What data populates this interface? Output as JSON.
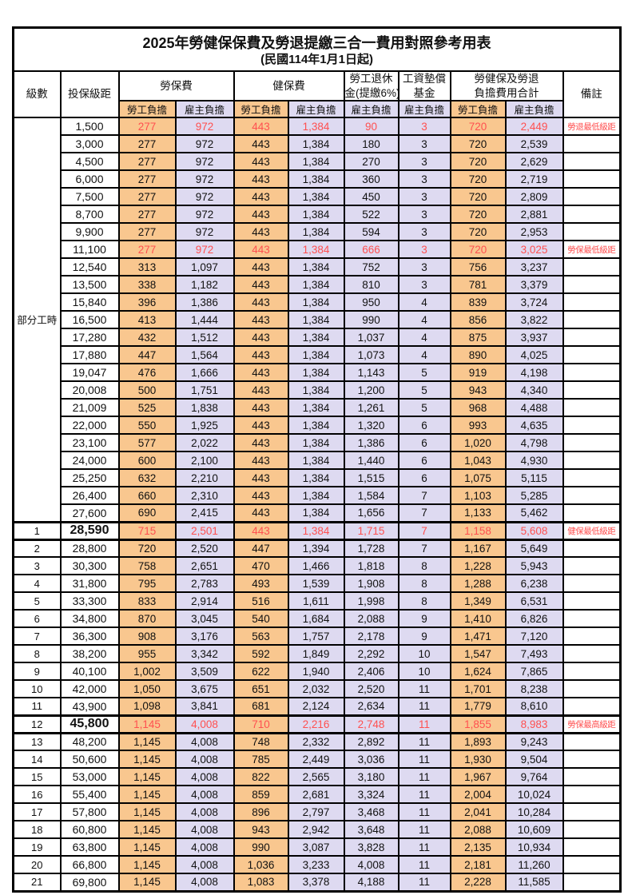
{
  "title": "2025年勞健保保費及勞退提繳三合一費用對照參考用表",
  "subtitle": "(民國114年1月1日起)",
  "colors": {
    "employee_column_bg": "#F9C78F",
    "employer_column_bg": "#DEDAF1",
    "highlight_text": "#FF5050",
    "border": "#000000",
    "background": "#FFFFFF"
  },
  "header": {
    "level": "級數",
    "bracket": "投保級距",
    "labor_insurance": "勞保費",
    "health_insurance": "健保費",
    "pension_line1": "勞工退休",
    "pension_line2": "金(提繳6%)",
    "wage_fund_line1": "工資墊償",
    "wage_fund_line2": "基金",
    "total_line1": "勞健保及勞退",
    "total_line2": "負擔費用合計",
    "remark": "備註",
    "employee": "勞工負擔",
    "employer": "雇主負擔"
  },
  "part_time_label": "部分工時",
  "rows": [
    {
      "level": "",
      "bracket": "1,500",
      "values": [
        "277",
        "972",
        "443",
        "1,384",
        "90",
        "3",
        "720",
        "2,449"
      ],
      "remark": "勞退最低級距",
      "highlight": true,
      "emphasis": false
    },
    {
      "level": "",
      "bracket": "3,000",
      "values": [
        "277",
        "972",
        "443",
        "1,384",
        "180",
        "3",
        "720",
        "2,539"
      ],
      "remark": "",
      "highlight": false,
      "emphasis": false
    },
    {
      "level": "",
      "bracket": "4,500",
      "values": [
        "277",
        "972",
        "443",
        "1,384",
        "270",
        "3",
        "720",
        "2,629"
      ],
      "remark": "",
      "highlight": false,
      "emphasis": false
    },
    {
      "level": "",
      "bracket": "6,000",
      "values": [
        "277",
        "972",
        "443",
        "1,384",
        "360",
        "3",
        "720",
        "2,719"
      ],
      "remark": "",
      "highlight": false,
      "emphasis": false
    },
    {
      "level": "",
      "bracket": "7,500",
      "values": [
        "277",
        "972",
        "443",
        "1,384",
        "450",
        "3",
        "720",
        "2,809"
      ],
      "remark": "",
      "highlight": false,
      "emphasis": false
    },
    {
      "level": "",
      "bracket": "8,700",
      "values": [
        "277",
        "972",
        "443",
        "1,384",
        "522",
        "3",
        "720",
        "2,881"
      ],
      "remark": "",
      "highlight": false,
      "emphasis": false
    },
    {
      "level": "",
      "bracket": "9,900",
      "values": [
        "277",
        "972",
        "443",
        "1,384",
        "594",
        "3",
        "720",
        "2,953"
      ],
      "remark": "",
      "highlight": false,
      "emphasis": false
    },
    {
      "level": "",
      "bracket": "11,100",
      "values": [
        "277",
        "972",
        "443",
        "1,384",
        "666",
        "3",
        "720",
        "3,025"
      ],
      "remark": "勞保最低級距",
      "highlight": true,
      "emphasis": false
    },
    {
      "level": "",
      "bracket": "12,540",
      "values": [
        "313",
        "1,097",
        "443",
        "1,384",
        "752",
        "3",
        "756",
        "3,237"
      ],
      "remark": "",
      "highlight": false,
      "emphasis": false
    },
    {
      "level": "",
      "bracket": "13,500",
      "values": [
        "338",
        "1,182",
        "443",
        "1,384",
        "810",
        "3",
        "781",
        "3,379"
      ],
      "remark": "",
      "highlight": false,
      "emphasis": false
    },
    {
      "level": "",
      "bracket": "15,840",
      "values": [
        "396",
        "1,386",
        "443",
        "1,384",
        "950",
        "4",
        "839",
        "3,724"
      ],
      "remark": "",
      "highlight": false,
      "emphasis": false
    },
    {
      "level": "",
      "bracket": "16,500",
      "values": [
        "413",
        "1,444",
        "443",
        "1,384",
        "990",
        "4",
        "856",
        "3,822"
      ],
      "remark": "",
      "highlight": false,
      "emphasis": false
    },
    {
      "level": "",
      "bracket": "17,280",
      "values": [
        "432",
        "1,512",
        "443",
        "1,384",
        "1,037",
        "4",
        "875",
        "3,937"
      ],
      "remark": "",
      "highlight": false,
      "emphasis": false
    },
    {
      "level": "",
      "bracket": "17,880",
      "values": [
        "447",
        "1,564",
        "443",
        "1,384",
        "1,073",
        "4",
        "890",
        "4,025"
      ],
      "remark": "",
      "highlight": false,
      "emphasis": false
    },
    {
      "level": "",
      "bracket": "19,047",
      "values": [
        "476",
        "1,666",
        "443",
        "1,384",
        "1,143",
        "5",
        "919",
        "4,198"
      ],
      "remark": "",
      "highlight": false,
      "emphasis": false
    },
    {
      "level": "",
      "bracket": "20,008",
      "values": [
        "500",
        "1,751",
        "443",
        "1,384",
        "1,200",
        "5",
        "943",
        "4,340"
      ],
      "remark": "",
      "highlight": false,
      "emphasis": false
    },
    {
      "level": "",
      "bracket": "21,009",
      "values": [
        "525",
        "1,838",
        "443",
        "1,384",
        "1,261",
        "5",
        "968",
        "4,488"
      ],
      "remark": "",
      "highlight": false,
      "emphasis": false
    },
    {
      "level": "",
      "bracket": "22,000",
      "values": [
        "550",
        "1,925",
        "443",
        "1,384",
        "1,320",
        "6",
        "993",
        "4,635"
      ],
      "remark": "",
      "highlight": false,
      "emphasis": false
    },
    {
      "level": "",
      "bracket": "23,100",
      "values": [
        "577",
        "2,022",
        "443",
        "1,384",
        "1,386",
        "6",
        "1,020",
        "4,798"
      ],
      "remark": "",
      "highlight": false,
      "emphasis": false
    },
    {
      "level": "",
      "bracket": "24,000",
      "values": [
        "600",
        "2,100",
        "443",
        "1,384",
        "1,440",
        "6",
        "1,043",
        "4,930"
      ],
      "remark": "",
      "highlight": false,
      "emphasis": false
    },
    {
      "level": "",
      "bracket": "25,250",
      "values": [
        "632",
        "2,210",
        "443",
        "1,384",
        "1,515",
        "6",
        "1,075",
        "5,115"
      ],
      "remark": "",
      "highlight": false,
      "emphasis": false
    },
    {
      "level": "",
      "bracket": "26,400",
      "values": [
        "660",
        "2,310",
        "443",
        "1,384",
        "1,584",
        "7",
        "1,103",
        "5,285"
      ],
      "remark": "",
      "highlight": false,
      "emphasis": false
    },
    {
      "level": "",
      "bracket": "27,600",
      "values": [
        "690",
        "2,415",
        "443",
        "1,384",
        "1,656",
        "7",
        "1,133",
        "5,462"
      ],
      "remark": "",
      "highlight": false,
      "emphasis": false
    },
    {
      "level": "1",
      "bracket": "28,590",
      "values": [
        "715",
        "2,501",
        "443",
        "1,384",
        "1,715",
        "7",
        "1,158",
        "5,608"
      ],
      "remark": "健保最低級距",
      "highlight": true,
      "emphasis": true
    },
    {
      "level": "2",
      "bracket": "28,800",
      "values": [
        "720",
        "2,520",
        "447",
        "1,394",
        "1,728",
        "7",
        "1,167",
        "5,649"
      ],
      "remark": "",
      "highlight": false,
      "emphasis": false
    },
    {
      "level": "3",
      "bracket": "30,300",
      "values": [
        "758",
        "2,651",
        "470",
        "1,466",
        "1,818",
        "8",
        "1,228",
        "5,943"
      ],
      "remark": "",
      "highlight": false,
      "emphasis": false
    },
    {
      "level": "4",
      "bracket": "31,800",
      "values": [
        "795",
        "2,783",
        "493",
        "1,539",
        "1,908",
        "8",
        "1,288",
        "6,238"
      ],
      "remark": "",
      "highlight": false,
      "emphasis": false
    },
    {
      "level": "5",
      "bracket": "33,300",
      "values": [
        "833",
        "2,914",
        "516",
        "1,611",
        "1,998",
        "8",
        "1,349",
        "6,531"
      ],
      "remark": "",
      "highlight": false,
      "emphasis": false
    },
    {
      "level": "6",
      "bracket": "34,800",
      "values": [
        "870",
        "3,045",
        "540",
        "1,684",
        "2,088",
        "9",
        "1,410",
        "6,826"
      ],
      "remark": "",
      "highlight": false,
      "emphasis": false
    },
    {
      "level": "7",
      "bracket": "36,300",
      "values": [
        "908",
        "3,176",
        "563",
        "1,757",
        "2,178",
        "9",
        "1,471",
        "7,120"
      ],
      "remark": "",
      "highlight": false,
      "emphasis": false
    },
    {
      "level": "8",
      "bracket": "38,200",
      "values": [
        "955",
        "3,342",
        "592",
        "1,849",
        "2,292",
        "10",
        "1,547",
        "7,493"
      ],
      "remark": "",
      "highlight": false,
      "emphasis": false
    },
    {
      "level": "9",
      "bracket": "40,100",
      "values": [
        "1,002",
        "3,509",
        "622",
        "1,940",
        "2,406",
        "10",
        "1,624",
        "7,865"
      ],
      "remark": "",
      "highlight": false,
      "emphasis": false
    },
    {
      "level": "10",
      "bracket": "42,000",
      "values": [
        "1,050",
        "3,675",
        "651",
        "2,032",
        "2,520",
        "11",
        "1,701",
        "8,238"
      ],
      "remark": "",
      "highlight": false,
      "emphasis": false
    },
    {
      "level": "11",
      "bracket": "43,900",
      "values": [
        "1,098",
        "3,841",
        "681",
        "2,124",
        "2,634",
        "11",
        "1,779",
        "8,610"
      ],
      "remark": "",
      "highlight": false,
      "emphasis": false
    },
    {
      "level": "12",
      "bracket": "45,800",
      "values": [
        "1,145",
        "4,008",
        "710",
        "2,216",
        "2,748",
        "11",
        "1,855",
        "8,983"
      ],
      "remark": "勞保最高級距",
      "highlight": true,
      "emphasis": true
    },
    {
      "level": "13",
      "bracket": "48,200",
      "values": [
        "1,145",
        "4,008",
        "748",
        "2,332",
        "2,892",
        "11",
        "1,893",
        "9,243"
      ],
      "remark": "",
      "highlight": false,
      "emphasis": false
    },
    {
      "level": "14",
      "bracket": "50,600",
      "values": [
        "1,145",
        "4,008",
        "785",
        "2,449",
        "3,036",
        "11",
        "1,930",
        "9,504"
      ],
      "remark": "",
      "highlight": false,
      "emphasis": false
    },
    {
      "level": "15",
      "bracket": "53,000",
      "values": [
        "1,145",
        "4,008",
        "822",
        "2,565",
        "3,180",
        "11",
        "1,967",
        "9,764"
      ],
      "remark": "",
      "highlight": false,
      "emphasis": false
    },
    {
      "level": "16",
      "bracket": "55,400",
      "values": [
        "1,145",
        "4,008",
        "859",
        "2,681",
        "3,324",
        "11",
        "2,004",
        "10,024"
      ],
      "remark": "",
      "highlight": false,
      "emphasis": false
    },
    {
      "level": "17",
      "bracket": "57,800",
      "values": [
        "1,145",
        "4,008",
        "896",
        "2,797",
        "3,468",
        "11",
        "2,041",
        "10,284"
      ],
      "remark": "",
      "highlight": false,
      "emphasis": false
    },
    {
      "level": "18",
      "bracket": "60,800",
      "values": [
        "1,145",
        "4,008",
        "943",
        "2,942",
        "3,648",
        "11",
        "2,088",
        "10,609"
      ],
      "remark": "",
      "highlight": false,
      "emphasis": false
    },
    {
      "level": "19",
      "bracket": "63,800",
      "values": [
        "1,145",
        "4,008",
        "990",
        "3,087",
        "3,828",
        "11",
        "2,135",
        "10,934"
      ],
      "remark": "",
      "highlight": false,
      "emphasis": false
    },
    {
      "level": "20",
      "bracket": "66,800",
      "values": [
        "1,145",
        "4,008",
        "1,036",
        "3,233",
        "4,008",
        "11",
        "2,181",
        "11,260"
      ],
      "remark": "",
      "highlight": false,
      "emphasis": false
    },
    {
      "level": "21",
      "bracket": "69,800",
      "values": [
        "1,145",
        "4,008",
        "1,083",
        "3,378",
        "4,188",
        "11",
        "2,228",
        "11,585"
      ],
      "remark": "",
      "highlight": false,
      "emphasis": false
    }
  ]
}
